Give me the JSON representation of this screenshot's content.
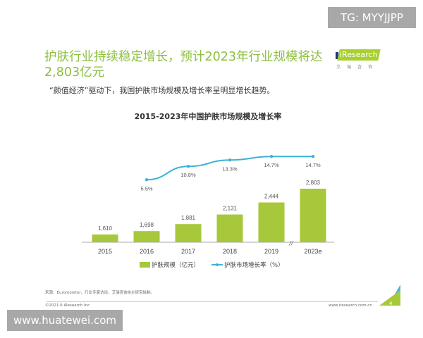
{
  "watermark_top": "TG: MYYJJPP",
  "watermark_bottom": "www.huatewei.com",
  "slide": {
    "title": "护肤行业持续稳定增长，预计2023年行业规模将达2,803亿元",
    "subtitle": "“颜值经济”驱动下，我国护肤市场规模及增长率呈明显增长趋势。",
    "logo": {
      "text": "iResearch",
      "cn": "艾瑞咨询"
    },
    "source": "来源：Euromonitor，行业专家访谈，艾瑞咨询自主研究绘制。",
    "copyright": "©2021.6 iResearch Inc",
    "website": "www.iresearch.com.cn",
    "page_number": "4"
  },
  "colors": {
    "title": "#8cbf3f",
    "bar": "#a6c83a",
    "line": "#3bb3d6"
  },
  "chart_data": {
    "type": "bar+line",
    "title": "2015-2023年中国护肤市场规模及增长率",
    "categories": [
      "2015",
      "2016",
      "2017",
      "2018",
      "2019",
      "2023e"
    ],
    "series": [
      {
        "name": "护肤规模（亿元）",
        "type": "bar",
        "values": [
          1610,
          1698,
          1881,
          2131,
          2444,
          2803
        ],
        "labels": [
          "1,610",
          "1,698",
          "1,881",
          "2,131",
          "2,444",
          "2,803"
        ]
      },
      {
        "name": "护肤市场增长率（%）",
        "type": "line",
        "values": [
          null,
          5.5,
          10.8,
          13.3,
          14.7,
          14.7
        ],
        "labels": [
          "",
          "5.5%",
          "10.8%",
          "13.3%",
          "14.7%",
          "14.7%"
        ]
      }
    ],
    "axis_break_between": [
      "2019",
      "2023e"
    ],
    "legend": "bottom",
    "grid": false
  }
}
